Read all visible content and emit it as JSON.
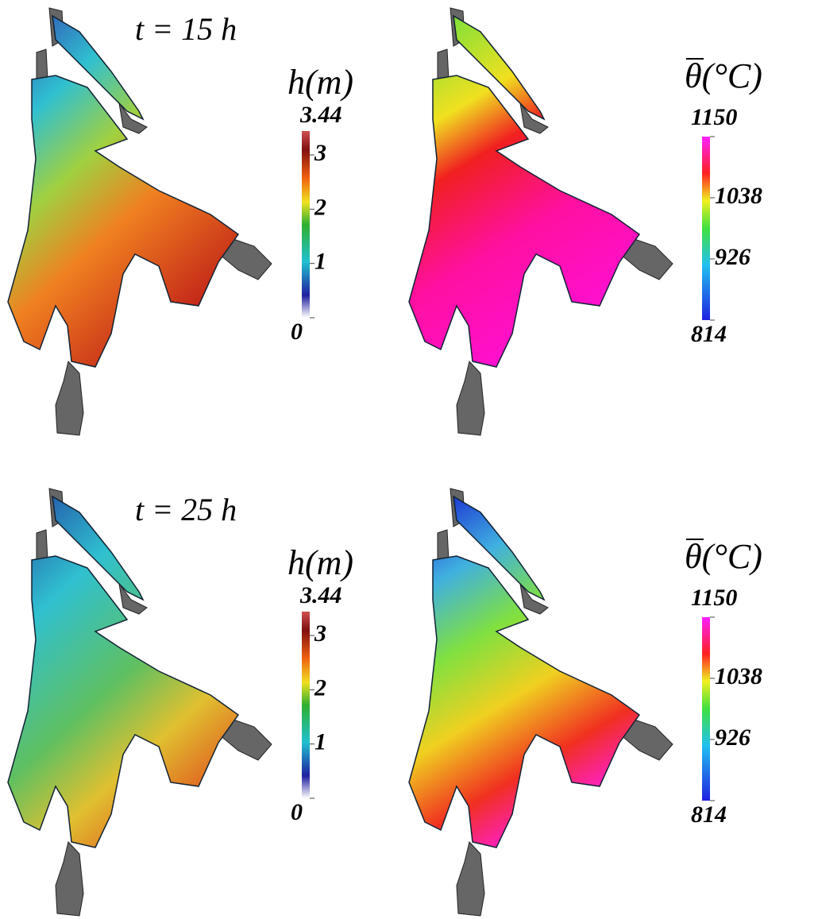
{
  "panels": [
    {
      "time_label": "t = 15 h",
      "thickness": {
        "label": "h(m)",
        "min": 0,
        "max": 3.44,
        "ticks": [
          0,
          1,
          2,
          3
        ]
      },
      "temperature": {
        "label": "θ(°C)",
        "min": 814,
        "max": 1150,
        "ticks": [
          814,
          926,
          1038,
          1150
        ]
      }
    },
    {
      "time_label": "t = 25 h",
      "thickness": {
        "label": "h(m)",
        "min": 0,
        "max": 3.44,
        "ticks": [
          0,
          1,
          2,
          3
        ]
      },
      "temperature": {
        "label": "θ(°C)",
        "min": 814,
        "max": 1150,
        "ticks": [
          814,
          926,
          1038,
          1150
        ]
      }
    }
  ]
}
